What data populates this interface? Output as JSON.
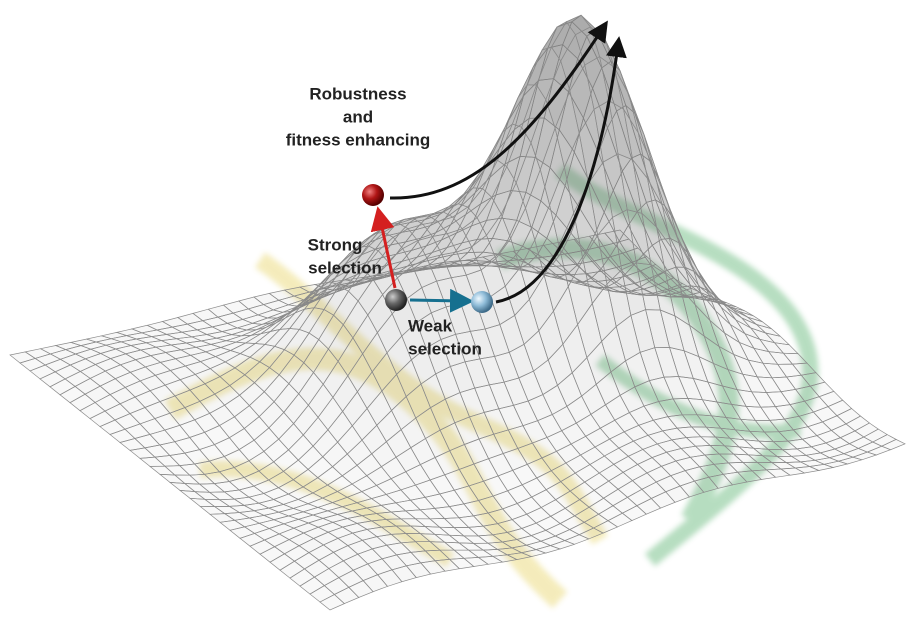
{
  "labels": {
    "robustness": [
      "Robustness",
      "and",
      "fitness enhancing"
    ],
    "strong_selection": [
      "Strong",
      "selection"
    ],
    "weak_selection": [
      "Weak",
      "selection"
    ]
  }
}
